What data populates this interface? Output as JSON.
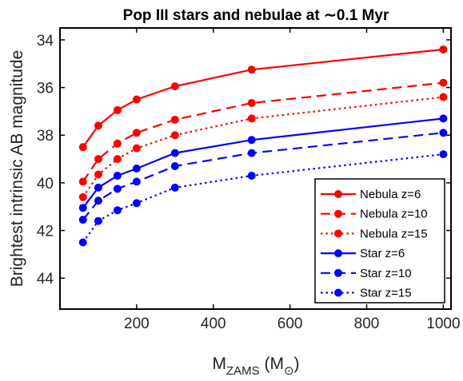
{
  "chart_data": {
    "type": "line",
    "title": "Pop III stars and nebulae at ∼0.1 Myr",
    "xlabel": {
      "main": "M",
      "sub": "ZAMS",
      "unit_open": " (M",
      "unit_sub": "⊙",
      "unit_close": ")"
    },
    "ylabel": "Brightest intrinsic AB magnitude",
    "xlim": [
      0,
      1020
    ],
    "ylim": [
      33.5,
      45.3
    ],
    "y_reversed": true,
    "x_ticks": [
      200,
      400,
      600,
      800,
      1000
    ],
    "y_ticks": [
      34,
      36,
      38,
      40,
      42,
      44
    ],
    "x": [
      60,
      100,
      150,
      200,
      300,
      500,
      1000
    ],
    "grid": false,
    "legend_position": "lower-right",
    "series": [
      {
        "name": "Nebula z=6",
        "color": "#ff0000",
        "dash": "solid",
        "values": [
          38.5,
          37.6,
          36.95,
          36.5,
          35.95,
          35.25,
          34.4
        ]
      },
      {
        "name": "Nebula z=10",
        "color": "#ff0000",
        "dash": "dashed",
        "values": [
          39.95,
          39.0,
          38.35,
          37.9,
          37.35,
          36.65,
          35.8
        ]
      },
      {
        "name": "Nebula z=15",
        "color": "#ff0000",
        "dash": "dotted",
        "values": [
          40.6,
          39.65,
          39.0,
          38.55,
          38.0,
          37.3,
          36.4
        ]
      },
      {
        "name": "Star z=6",
        "color": "#0000ff",
        "dash": "solid",
        "values": [
          41.05,
          40.2,
          39.7,
          39.4,
          38.75,
          38.2,
          37.3
        ]
      },
      {
        "name": "Star z=10",
        "color": "#0000ff",
        "dash": "dashed",
        "values": [
          41.55,
          40.75,
          40.25,
          39.95,
          39.3,
          38.75,
          37.9
        ]
      },
      {
        "name": "Star z=15",
        "color": "#0000ff",
        "dash": "dotted",
        "values": [
          42.5,
          41.6,
          41.15,
          40.85,
          40.2,
          39.7,
          38.8
        ]
      }
    ]
  }
}
